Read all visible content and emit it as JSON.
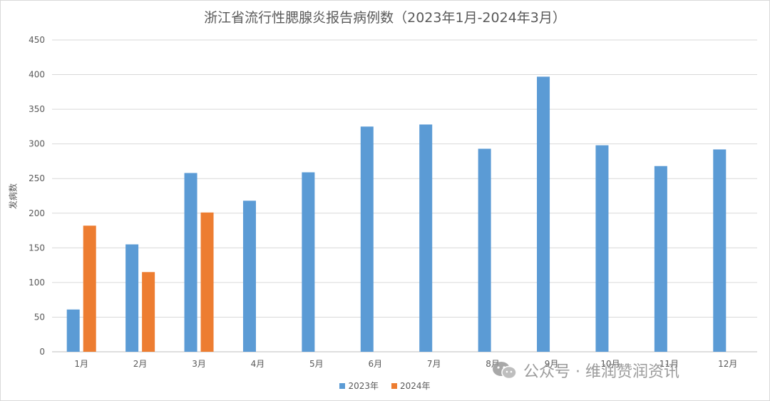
{
  "chart_data": {
    "type": "bar",
    "title": "浙江省流行性腮腺炎报告病例数（2023年1月-2024年3月）",
    "xlabel": "",
    "ylabel": "发病数",
    "ylim": [
      0,
      450
    ],
    "yticks": [
      0,
      50,
      100,
      150,
      200,
      250,
      300,
      350,
      400,
      450
    ],
    "grid": true,
    "legend_position": "bottom",
    "categories": [
      "1月",
      "2月",
      "3月",
      "4月",
      "5月",
      "6月",
      "7月",
      "8月",
      "9月",
      "10月",
      "11月",
      "12月"
    ],
    "series": [
      {
        "name": "2023年",
        "color": "#5b9bd5",
        "values": [
          61,
          155,
          258,
          218,
          259,
          325,
          328,
          293,
          397,
          298,
          268,
          292
        ]
      },
      {
        "name": "2024年",
        "color": "#ed7d31",
        "values": [
          182,
          115,
          201,
          null,
          null,
          null,
          null,
          null,
          null,
          null,
          null,
          null
        ]
      }
    ]
  },
  "watermark": {
    "text": "公众号 · 维润赞润资讯",
    "icon": "wechat-icon"
  }
}
